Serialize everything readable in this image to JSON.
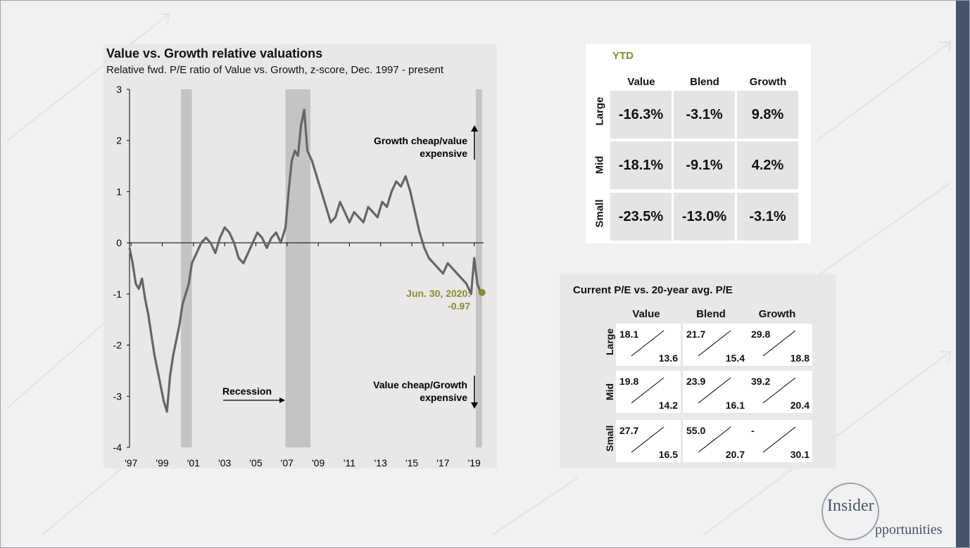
{
  "chart_data": {
    "type": "line",
    "title": "Value vs. Growth relative valuations",
    "subtitle": "Relative fwd. P/E ratio of Value vs. Growth, z-score, Dec. 1997 - present",
    "ylim": [
      -4,
      3
    ],
    "yticks": [
      "3",
      "2",
      "1",
      "0",
      "-1",
      "-2",
      "-3",
      "-4"
    ],
    "xlim": [
      1997.9,
      2020.6
    ],
    "xtick_values": [
      1998,
      2000,
      2002,
      2004,
      2006,
      2008,
      2010,
      2012,
      2014,
      2016,
      2018,
      2020
    ],
    "xtick_labels": [
      "'97",
      "'99",
      "'01",
      "'03",
      "'05",
      "'07",
      "'09",
      "'11",
      "'13",
      "'15",
      "'17",
      "'19"
    ],
    "recessions": [
      [
        2001.2,
        2001.9
      ],
      [
        2007.9,
        2009.5
      ],
      [
        2020.1,
        2020.5
      ]
    ],
    "series": [
      {
        "x": [
          1997.9,
          1998.1,
          1998.3,
          1998.5,
          1998.7,
          1998.9,
          1999.1,
          1999.3,
          1999.5,
          1999.7,
          1999.9,
          2000.1,
          2000.3,
          2000.5,
          2000.7,
          2000.9,
          2001.1,
          2001.3,
          2001.5,
          2001.7,
          2001.9,
          2002.2,
          2002.5,
          2002.8,
          2003.1,
          2003.4,
          2003.7,
          2004.0,
          2004.3,
          2004.6,
          2004.9,
          2005.2,
          2005.5,
          2005.8,
          2006.1,
          2006.4,
          2006.7,
          2007.0,
          2007.3,
          2007.6,
          2007.9,
          2008.1,
          2008.3,
          2008.5,
          2008.7,
          2008.9,
          2009.1,
          2009.3,
          2009.6,
          2009.9,
          2010.2,
          2010.5,
          2010.8,
          2011.1,
          2011.4,
          2011.7,
          2012.0,
          2012.3,
          2012.6,
          2012.9,
          2013.2,
          2013.5,
          2013.8,
          2014.1,
          2014.4,
          2014.7,
          2015.0,
          2015.3,
          2015.6,
          2015.9,
          2016.2,
          2016.5,
          2016.8,
          2017.1,
          2017.4,
          2017.7,
          2018.0,
          2018.3,
          2018.6,
          2018.9,
          2019.2,
          2019.5,
          2019.8,
          2020.0,
          2020.2,
          2020.4,
          2020.5
        ],
        "y": [
          -0.1,
          -0.4,
          -0.8,
          -0.9,
          -0.7,
          -1.1,
          -1.4,
          -1.8,
          -2.2,
          -2.5,
          -2.8,
          -3.1,
          -3.3,
          -2.6,
          -2.2,
          -1.9,
          -1.6,
          -1.2,
          -1.0,
          -0.8,
          -0.4,
          -0.2,
          0.0,
          0.1,
          0.0,
          -0.2,
          0.1,
          0.3,
          0.2,
          0.0,
          -0.3,
          -0.4,
          -0.2,
          0.0,
          0.2,
          0.1,
          -0.1,
          0.1,
          0.2,
          0.0,
          0.3,
          1.0,
          1.6,
          1.8,
          1.7,
          2.3,
          2.6,
          1.8,
          1.6,
          1.3,
          1.0,
          0.7,
          0.4,
          0.5,
          0.8,
          0.6,
          0.4,
          0.6,
          0.5,
          0.4,
          0.7,
          0.6,
          0.5,
          0.8,
          0.7,
          1.0,
          1.2,
          1.1,
          1.3,
          1.0,
          0.6,
          0.2,
          -0.1,
          -0.3,
          -0.4,
          -0.5,
          -0.6,
          -0.4,
          -0.5,
          -0.6,
          -0.7,
          -0.8,
          -1.0,
          -0.3,
          -0.8,
          -0.97,
          -0.97
        ]
      }
    ],
    "annotations": {
      "growth_cheap": "Growth cheap/value expensive",
      "value_cheap": "Value cheap/Growth expensive",
      "recession": "Recession",
      "current_label": "Jun. 30, 2020:",
      "current_value": "-0.97"
    },
    "current_point": {
      "x": 2020.5,
      "y": -0.97,
      "color": "#8b8b2f"
    }
  },
  "ytd": {
    "title": "YTD",
    "columns": [
      "Value",
      "Blend",
      "Growth"
    ],
    "rows": [
      {
        "label": "Large",
        "values": [
          "-16.3%",
          "-3.1%",
          "9.8%"
        ]
      },
      {
        "label": "Mid",
        "values": [
          "-18.1%",
          "-9.1%",
          "4.2%"
        ]
      },
      {
        "label": "Small",
        "values": [
          "-23.5%",
          "-13.0%",
          "-3.1%"
        ]
      }
    ]
  },
  "pe": {
    "title": "Current P/E vs. 20-year avg. P/E",
    "columns": [
      "Value",
      "Blend",
      "Growth"
    ],
    "rows": [
      {
        "label": "Large",
        "cells": [
          {
            "current": "18.1",
            "avg": "13.6"
          },
          {
            "current": "21.7",
            "avg": "15.4"
          },
          {
            "current": "29.8",
            "avg": "18.8"
          }
        ]
      },
      {
        "label": "Mid",
        "cells": [
          {
            "current": "19.8",
            "avg": "14.2"
          },
          {
            "current": "23.9",
            "avg": "16.1"
          },
          {
            "current": "39.2",
            "avg": "20.4"
          }
        ]
      },
      {
        "label": "Small",
        "cells": [
          {
            "current": "27.7",
            "avg": "16.5"
          },
          {
            "current": "55.0",
            "avg": "20.7"
          },
          {
            "current": "-",
            "avg": "30.1"
          }
        ]
      }
    ]
  },
  "logo": {
    "word1": "Insider",
    "word2": "pportunities"
  },
  "colors": {
    "line": "#666666",
    "recession": "#c4c4c4",
    "highlight": "#8b8b2f",
    "accent_bar": "#44546a"
  }
}
